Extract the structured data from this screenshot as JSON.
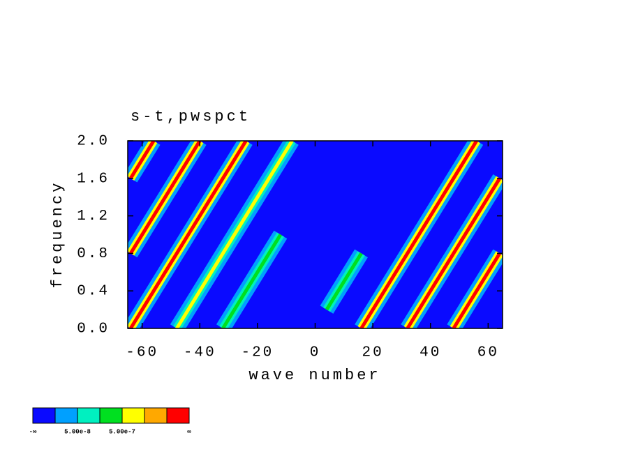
{
  "chart_data": {
    "type": "spectrum",
    "title": "s-t,pwspct",
    "xlabel": "wave number",
    "ylabel": "frequency",
    "xlim": [
      -65,
      65
    ],
    "ylim": [
      0,
      2.0
    ],
    "xticks": [
      -60,
      -40,
      -20,
      0,
      20,
      40,
      60
    ],
    "yticks": [
      {
        "value": 0,
        "label": "0.0"
      },
      {
        "value": 0.4,
        "label": "0.4"
      },
      0.8,
      1.2,
      1.6,
      {
        "value": 2.0,
        "label": "2.0"
      }
    ],
    "background_level": 0,
    "ridges": [
      {
        "from": [
          -64,
          1.6
        ],
        "to": [
          -56,
          2.0
        ],
        "level": 6
      },
      {
        "from": [
          -64,
          0.8
        ],
        "to": [
          -40,
          2.0
        ],
        "level": 6
      },
      {
        "from": [
          -64,
          0
        ],
        "to": [
          -24,
          2.0
        ],
        "level": 6
      },
      {
        "from": [
          -48,
          0
        ],
        "to": [
          -8,
          2.0
        ],
        "level": 4
      },
      {
        "from": [
          -32,
          0
        ],
        "to": [
          -12,
          1.0
        ],
        "level": 3
      },
      {
        "from": [
          4,
          0.2
        ],
        "to": [
          16,
          0.8
        ],
        "level": 3
      },
      {
        "from": [
          16,
          0
        ],
        "to": [
          56,
          2.0
        ],
        "level": 6
      },
      {
        "from": [
          32,
          0
        ],
        "to": [
          64,
          1.6
        ],
        "level": 6
      },
      {
        "from": [
          48,
          0
        ],
        "to": [
          64,
          0.8
        ],
        "level": 6
      }
    ],
    "colorbar": {
      "colors": [
        "#0a0aff",
        "#00a0ff",
        "#00f0c0",
        "#00e020",
        "#ffff00",
        "#ffa800",
        "#ff0000"
      ],
      "labels": [
        "-∞",
        "5.00e-8",
        "5.00e-7",
        "∞"
      ]
    }
  }
}
